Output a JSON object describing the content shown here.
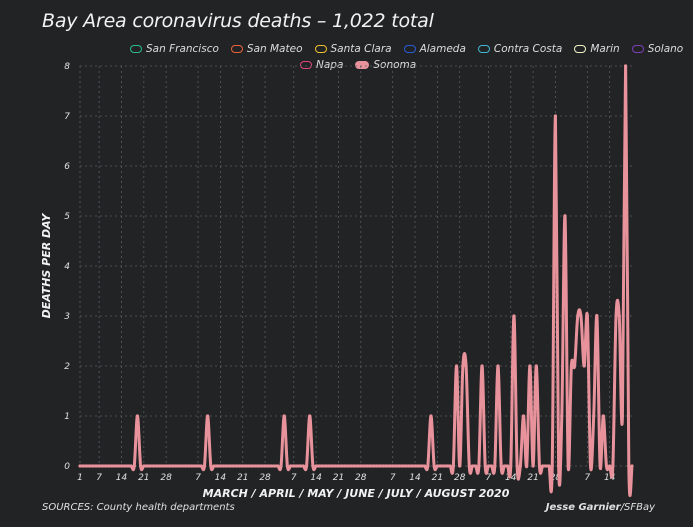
{
  "title": "Bay Area coronavirus deaths – 1,022 total",
  "legend": {
    "row1": [
      {
        "label": "San Francisco",
        "color": "#2bbb8a"
      },
      {
        "label": "San Mateo",
        "color": "#e8633a"
      },
      {
        "label": "Santa Clara",
        "color": "#f2c12e"
      },
      {
        "label": "Alameda",
        "color": "#2a5bd7"
      },
      {
        "label": "Contra Costa",
        "color": "#44b5d6"
      },
      {
        "label": "Marin",
        "color": "#f2f2c8"
      },
      {
        "label": "Solano",
        "color": "#7d3fb8"
      }
    ],
    "row2": [
      {
        "label": "Napa",
        "color": "#e0457b"
      },
      {
        "label": "Sonoma",
        "color": "#e8939c",
        "filled": true
      }
    ]
  },
  "source": "SOURCES: County health departments",
  "credit": {
    "author": "Jesse Garnier",
    "outlet": "/SFBay"
  },
  "chart_data": {
    "type": "line",
    "title": "Bay Area coronavirus deaths – 1,022 total",
    "xlabel": "MARCH / APRIL / MAY / JUNE / JULY / AUGUST 2020",
    "ylabel": "DEATHS PER DAY",
    "ylim": [
      0,
      8
    ],
    "yticks": [
      0,
      1,
      2,
      3,
      4,
      5,
      6,
      7,
      8
    ],
    "x_start": "2020-03-01",
    "x_end": "2020-08-21",
    "xticks": [
      {
        "label": "1",
        "date": "2020-03-01"
      },
      {
        "label": "7",
        "date": "2020-03-07"
      },
      {
        "label": "14",
        "date": "2020-03-14"
      },
      {
        "label": "21",
        "date": "2020-03-21"
      },
      {
        "label": "28",
        "date": "2020-03-28"
      },
      {
        "label": "7",
        "date": "2020-04-07"
      },
      {
        "label": "14",
        "date": "2020-04-14"
      },
      {
        "label": "21",
        "date": "2020-04-21"
      },
      {
        "label": "28",
        "date": "2020-04-28"
      },
      {
        "label": "7",
        "date": "2020-05-07"
      },
      {
        "label": "14",
        "date": "2020-05-14"
      },
      {
        "label": "21",
        "date": "2020-05-21"
      },
      {
        "label": "28",
        "date": "2020-05-28"
      },
      {
        "label": "7",
        "date": "2020-06-07"
      },
      {
        "label": "14",
        "date": "2020-06-14"
      },
      {
        "label": "21",
        "date": "2020-06-21"
      },
      {
        "label": "28",
        "date": "2020-06-28"
      },
      {
        "label": "7",
        "date": "2020-07-07"
      },
      {
        "label": "14",
        "date": "2020-07-14"
      },
      {
        "label": "21",
        "date": "2020-07-21"
      },
      {
        "label": "28",
        "date": "2020-07-28"
      },
      {
        "label": "7",
        "date": "2020-08-07"
      },
      {
        "label": "14",
        "date": "2020-08-14"
      }
    ],
    "grid": true,
    "legend_placement": "top",
    "series": [
      {
        "name": "Sonoma",
        "color": "#e8939c",
        "points": [
          {
            "date": "2020-03-19",
            "value": 1
          },
          {
            "date": "2020-04-10",
            "value": 1
          },
          {
            "date": "2020-05-04",
            "value": 1
          },
          {
            "date": "2020-05-12",
            "value": 1
          },
          {
            "date": "2020-06-19",
            "value": 1
          },
          {
            "date": "2020-06-27",
            "value": 2
          },
          {
            "date": "2020-06-29",
            "value": 2
          },
          {
            "date": "2020-06-30",
            "value": 2
          },
          {
            "date": "2020-07-05",
            "value": 2
          },
          {
            "date": "2020-07-10",
            "value": 2
          },
          {
            "date": "2020-07-15",
            "value": 3
          },
          {
            "date": "2020-07-18",
            "value": 1
          },
          {
            "date": "2020-07-20",
            "value": 2
          },
          {
            "date": "2020-07-22",
            "value": 2
          },
          {
            "date": "2020-07-28",
            "value": 7
          },
          {
            "date": "2020-07-30",
            "value": 1
          },
          {
            "date": "2020-07-31",
            "value": 5
          },
          {
            "date": "2020-08-02",
            "value": 2
          },
          {
            "date": "2020-08-03",
            "value": 2
          },
          {
            "date": "2020-08-04",
            "value": 3
          },
          {
            "date": "2020-08-05",
            "value": 3
          },
          {
            "date": "2020-08-06",
            "value": 2
          },
          {
            "date": "2020-08-07",
            "value": 3
          },
          {
            "date": "2020-08-09",
            "value": 1
          },
          {
            "date": "2020-08-10",
            "value": 3
          },
          {
            "date": "2020-08-12",
            "value": 1
          },
          {
            "date": "2020-08-16",
            "value": 3
          },
          {
            "date": "2020-08-17",
            "value": 3
          },
          {
            "date": "2020-08-18",
            "value": 1
          },
          {
            "date": "2020-08-19",
            "value": 8
          }
        ]
      }
    ]
  }
}
